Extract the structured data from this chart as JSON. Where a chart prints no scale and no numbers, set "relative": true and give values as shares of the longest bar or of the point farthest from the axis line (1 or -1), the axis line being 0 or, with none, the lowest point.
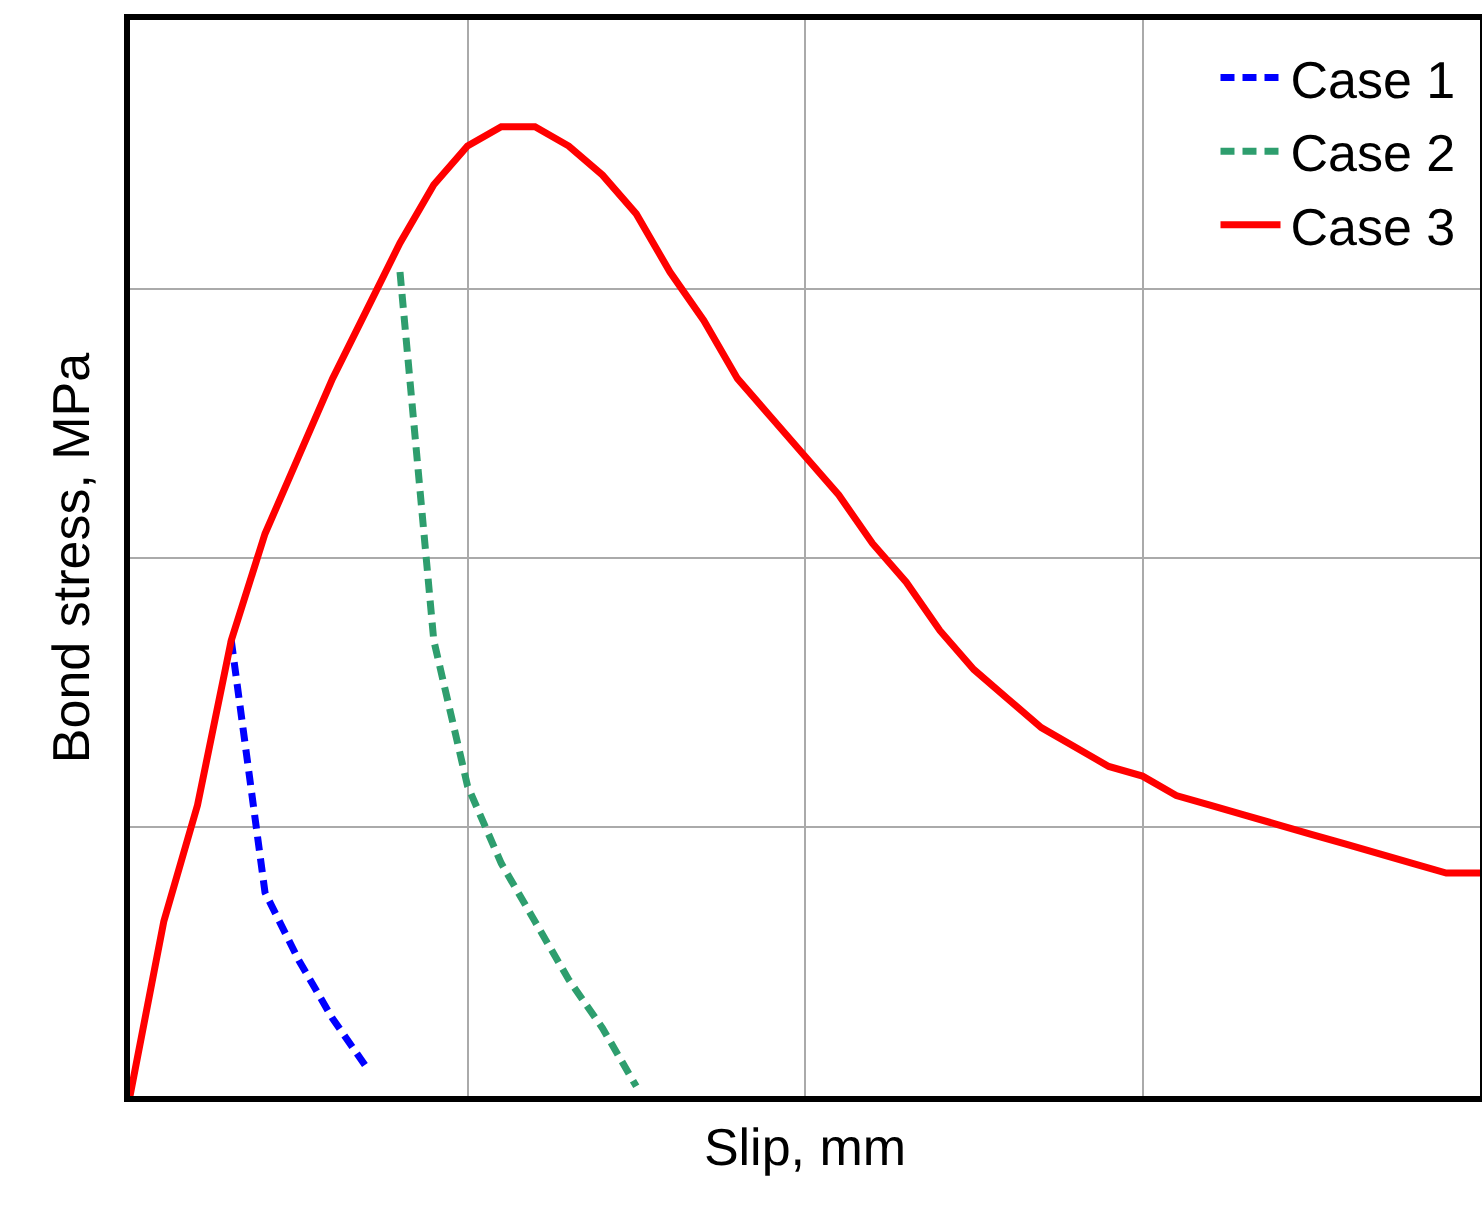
{
  "chart_data": {
    "type": "line",
    "relative": true,
    "xlabel": "Slip, mm",
    "ylabel": "Bond stress, MPa",
    "categories": [
      null,
      null,
      null,
      null,
      null,
      null,
      null,
      null,
      null,
      null,
      null,
      null,
      null,
      null,
      null,
      null,
      null,
      null,
      null,
      null,
      null,
      null,
      null,
      null,
      null,
      null,
      null,
      null,
      null,
      null,
      null,
      null,
      null,
      null,
      null,
      null,
      null,
      null,
      null,
      null,
      null
    ],
    "series": [
      {
        "name": "Case 1",
        "color": "#0000ff",
        "line_style": "dashed",
        "values": [
          null,
          null,
          null,
          0.47,
          0.21,
          0.14,
          0.08,
          0.03,
          null,
          null,
          null,
          null,
          null,
          null,
          null,
          null,
          null,
          null,
          null,
          null,
          null,
          null,
          null,
          null,
          null,
          null,
          null,
          null,
          null,
          null,
          null,
          null,
          null,
          null,
          null,
          null,
          null,
          null,
          null,
          null,
          null
        ]
      },
      {
        "name": "Case 2",
        "color": "#2e9e6e",
        "line_style": "dashed",
        "values": [
          null,
          null,
          null,
          null,
          null,
          null,
          null,
          null,
          0.85,
          0.47,
          0.32,
          0.24,
          0.18,
          0.12,
          0.07,
          0.01,
          null,
          null,
          null,
          null,
          null,
          null,
          null,
          null,
          null,
          null,
          null,
          null,
          null,
          null,
          null,
          null,
          null,
          null,
          null,
          null,
          null,
          null,
          null,
          null,
          null
        ]
      },
      {
        "name": "Case 3",
        "color": "#ff0000",
        "line_style": "solid",
        "values": [
          0,
          0.18,
          0.3,
          0.47,
          0.58,
          0.66,
          0.74,
          0.81,
          0.88,
          0.94,
          0.98,
          1,
          1,
          0.98,
          0.95,
          0.91,
          0.85,
          0.8,
          0.74,
          0.7,
          0.66,
          0.62,
          0.57,
          0.53,
          0.48,
          0.44,
          0.41,
          0.38,
          0.36,
          0.34,
          0.33,
          0.31,
          0.3,
          0.29,
          0.28,
          0.27,
          0.26,
          0.25,
          0.24,
          0.23,
          0.23
        ]
      }
    ],
    "grid": true,
    "legend": "top right",
    "marker": "none"
  }
}
